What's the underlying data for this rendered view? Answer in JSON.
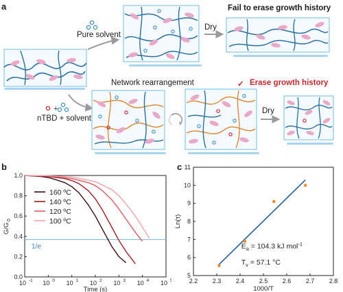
{
  "panel_a": {
    "letter": "a",
    "top_branch_reagent": "Pure solvent",
    "top_dry_label": "Dry",
    "top_outcome": "Fail to erase growth history",
    "network_rearrangement": "Network rearrangement",
    "bottom_reagent": "nTBD + solvent",
    "bottom_dry_label": "Dry",
    "check_mark": "✓",
    "bottom_outcome": "Erase growth history",
    "colors": {
      "chain_blue": "#2a6f9e",
      "chain_orange": "#d98b3a",
      "segment_pink": "#e9a9c9",
      "solvent_blue": "#3a8fc8",
      "tbd_red": "#c0282d",
      "box_border": "#8cc6e6",
      "box_fill": "#f4fafd"
    }
  },
  "panel_b": {
    "letter": "b",
    "ylabel": "G/G",
    "ylabel_sub": "0",
    "xlabel": "Time (s)",
    "reference_label": "1/e",
    "chart_data": {
      "type": "line",
      "xscale": "log",
      "xlim": [
        0.1,
        100000
      ],
      "ylim": [
        0,
        1.0
      ],
      "x_ticks": [
        "10",
        "10",
        "10",
        "10",
        "10",
        "10",
        "10"
      ],
      "x_tick_exponents": [
        "-1",
        "0",
        "1",
        "2",
        "3",
        "4",
        "5"
      ],
      "x_tick_values": [
        0.1,
        1,
        10,
        100,
        1000,
        10000,
        100000
      ],
      "y_ticks": [
        "0.0",
        "0.2",
        "0.4",
        "0.6",
        "0.8",
        "1.0"
      ],
      "reference_y": 0.368,
      "series": [
        {
          "name": "160 ºC",
          "color": "#3b0a0c",
          "x": [
            0.1,
            0.5,
            1,
            2,
            5,
            10,
            20,
            50,
            100,
            200,
            500,
            1000,
            2000
          ],
          "y": [
            1.0,
            0.99,
            0.98,
            0.96,
            0.93,
            0.89,
            0.83,
            0.71,
            0.6,
            0.47,
            0.3,
            0.2,
            0.14
          ]
        },
        {
          "name": "140 ºC",
          "color": "#9a1b1e",
          "x": [
            0.1,
            1,
            5,
            10,
            20,
            50,
            100,
            200,
            500,
            1000,
            2000,
            5000
          ],
          "y": [
            1.0,
            0.99,
            0.97,
            0.95,
            0.92,
            0.85,
            0.77,
            0.66,
            0.49,
            0.36,
            0.25,
            0.13
          ]
        },
        {
          "name": "120 ºC",
          "color": "#dd5a5e",
          "x": [
            0.1,
            1,
            10,
            50,
            100,
            200,
            500,
            1000,
            2000,
            5000,
            10000
          ],
          "y": [
            1.0,
            0.995,
            0.97,
            0.93,
            0.9,
            0.85,
            0.76,
            0.67,
            0.57,
            0.44,
            0.35
          ]
        },
        {
          "name": "100 ºC",
          "color": "#f1a4a6",
          "x": [
            0.1,
            1,
            10,
            100,
            500,
            1000,
            2000,
            5000,
            10000,
            20000
          ],
          "y": [
            1.0,
            0.998,
            0.985,
            0.94,
            0.86,
            0.8,
            0.72,
            0.6,
            0.49,
            0.38
          ]
        }
      ]
    }
  },
  "panel_c": {
    "letter": "c",
    "ylabel": "Ln(τ)",
    "xlabel": "1000/T",
    "ea_prefix": "E",
    "ea_sub": "a",
    "ea_value": " = 104.3 kJ mol",
    "ea_exp": "-1",
    "tv_prefix": "T",
    "tv_sub": "v",
    "tv_value": " = 57.1 °C",
    "chart_data": {
      "type": "scatter",
      "xlim": [
        2.2,
        2.8
      ],
      "ylim": [
        5,
        11
      ],
      "x_ticks": [
        "2.2",
        "2.3",
        "2.4",
        "2.5",
        "2.6",
        "2.7",
        "2.8"
      ],
      "y_ticks": [
        "5",
        "6",
        "7",
        "8",
        "9",
        "10",
        "11"
      ],
      "point_color": "#e88a2c",
      "fit_color": "#1f5f95",
      "points": [
        {
          "x": 2.31,
          "y": 5.55
        },
        {
          "x": 2.42,
          "y": 6.9
        },
        {
          "x": 2.545,
          "y": 9.1
        },
        {
          "x": 2.68,
          "y": 10.0
        }
      ],
      "fit": {
        "x": [
          2.31,
          2.68
        ],
        "y": [
          5.62,
          10.3
        ]
      }
    }
  }
}
